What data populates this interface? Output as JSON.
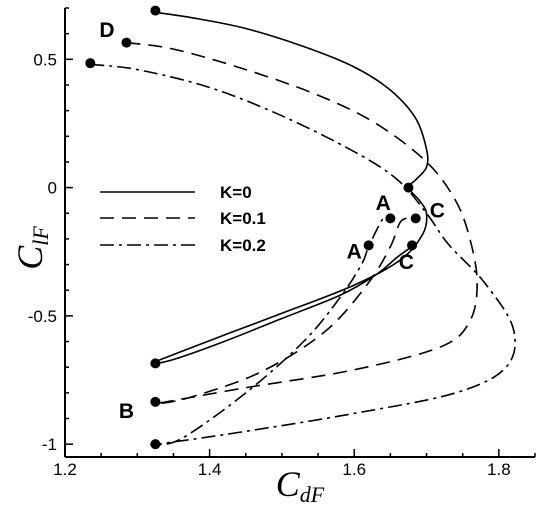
{
  "chart_data": {
    "type": "line",
    "xlabel": "C",
    "xlabel_sub": "dF",
    "ylabel": "C",
    "ylabel_sub": "lF",
    "xlim": [
      1.2,
      1.85
    ],
    "ylim": [
      -1.05,
      0.7
    ],
    "x_ticks": [
      1.2,
      1.4,
      1.6,
      1.8
    ],
    "x_tick_labels": [
      "1.2",
      "1.4",
      "1.6",
      "1.8"
    ],
    "y_ticks": [
      0.5,
      0,
      -0.5,
      -1
    ],
    "y_tick_labels": [
      "0.5",
      "0",
      "-0.5",
      "-1"
    ],
    "grid": false,
    "legend_position": "left-center",
    "series": [
      {
        "name": "K=0",
        "dash": "solid",
        "points": [
          [
            1.32,
            0.685
          ],
          [
            1.38,
            0.66
          ],
          [
            1.45,
            0.62
          ],
          [
            1.53,
            0.55
          ],
          [
            1.6,
            0.47
          ],
          [
            1.65,
            0.38
          ],
          [
            1.685,
            0.27
          ],
          [
            1.7,
            0.15
          ],
          [
            1.7,
            0.08
          ],
          [
            1.685,
            0.03
          ],
          [
            1.675,
            0.0
          ],
          [
            1.69,
            -0.05
          ],
          [
            1.7,
            -0.1
          ],
          [
            1.695,
            -0.18
          ],
          [
            1.665,
            -0.28
          ],
          [
            1.6,
            -0.38
          ],
          [
            1.5,
            -0.49
          ],
          [
            1.42,
            -0.575
          ],
          [
            1.36,
            -0.64
          ],
          [
            1.32,
            -0.685
          ],
          [
            1.35,
            -0.67
          ],
          [
            1.42,
            -0.6
          ],
          [
            1.5,
            -0.51
          ],
          [
            1.58,
            -0.42
          ],
          [
            1.63,
            -0.34
          ],
          [
            1.66,
            -0.27
          ],
          [
            1.68,
            -0.23
          ]
        ]
      },
      {
        "name": "K=0.1",
        "dash": "dashed",
        "points": [
          [
            1.285,
            0.565
          ],
          [
            1.35,
            0.54
          ],
          [
            1.45,
            0.46
          ],
          [
            1.55,
            0.36
          ],
          [
            1.63,
            0.25
          ],
          [
            1.7,
            0.1
          ],
          [
            1.74,
            -0.05
          ],
          [
            1.76,
            -0.2
          ],
          [
            1.77,
            -0.37
          ],
          [
            1.76,
            -0.52
          ],
          [
            1.72,
            -0.62
          ],
          [
            1.6,
            -0.71
          ],
          [
            1.45,
            -0.78
          ],
          [
            1.33,
            -0.84
          ],
          [
            1.37,
            -0.82
          ],
          [
            1.47,
            -0.72
          ],
          [
            1.56,
            -0.56
          ],
          [
            1.62,
            -0.37
          ],
          [
            1.65,
            -0.23
          ],
          [
            1.665,
            -0.13
          ],
          [
            1.685,
            -0.12
          ]
        ]
      },
      {
        "name": "K=0.2",
        "dash": "dashdot",
        "points": [
          [
            1.235,
            0.48
          ],
          [
            1.3,
            0.46
          ],
          [
            1.4,
            0.39
          ],
          [
            1.5,
            0.28
          ],
          [
            1.6,
            0.14
          ],
          [
            1.66,
            0.03
          ],
          [
            1.7,
            -0.1
          ],
          [
            1.73,
            -0.22
          ],
          [
            1.78,
            -0.37
          ],
          [
            1.82,
            -0.55
          ],
          [
            1.81,
            -0.7
          ],
          [
            1.74,
            -0.8
          ],
          [
            1.6,
            -0.88
          ],
          [
            1.45,
            -0.95
          ],
          [
            1.34,
            -0.995
          ],
          [
            1.32,
            -1.0
          ],
          [
            1.36,
            -0.98
          ],
          [
            1.45,
            -0.8
          ],
          [
            1.53,
            -0.6
          ],
          [
            1.58,
            -0.43
          ],
          [
            1.61,
            -0.3
          ],
          [
            1.62,
            -0.23
          ],
          [
            1.64,
            -0.12
          ],
          [
            1.65,
            -0.12
          ]
        ]
      }
    ],
    "markers": [
      [
        1.325,
        0.69
      ],
      [
        1.285,
        0.565
      ],
      [
        1.235,
        0.485
      ],
      [
        1.675,
        0.0
      ],
      [
        1.685,
        -0.12
      ],
      [
        1.65,
        -0.12
      ],
      [
        1.68,
        -0.225
      ],
      [
        1.62,
        -0.225
      ],
      [
        1.325,
        -0.685
      ],
      [
        1.325,
        -0.835
      ],
      [
        1.325,
        -1.0
      ]
    ],
    "annotations": [
      {
        "text": "D",
        "x": 1.258,
        "y": 0.615
      },
      {
        "text": "A",
        "x": 1.64,
        "y": -0.06
      },
      {
        "text": "C",
        "x": 1.715,
        "y": -0.09
      },
      {
        "text": "A",
        "x": 1.6,
        "y": -0.25
      },
      {
        "text": "C",
        "x": 1.672,
        "y": -0.29
      },
      {
        "text": "B",
        "x": 1.285,
        "y": -0.87
      }
    ]
  }
}
